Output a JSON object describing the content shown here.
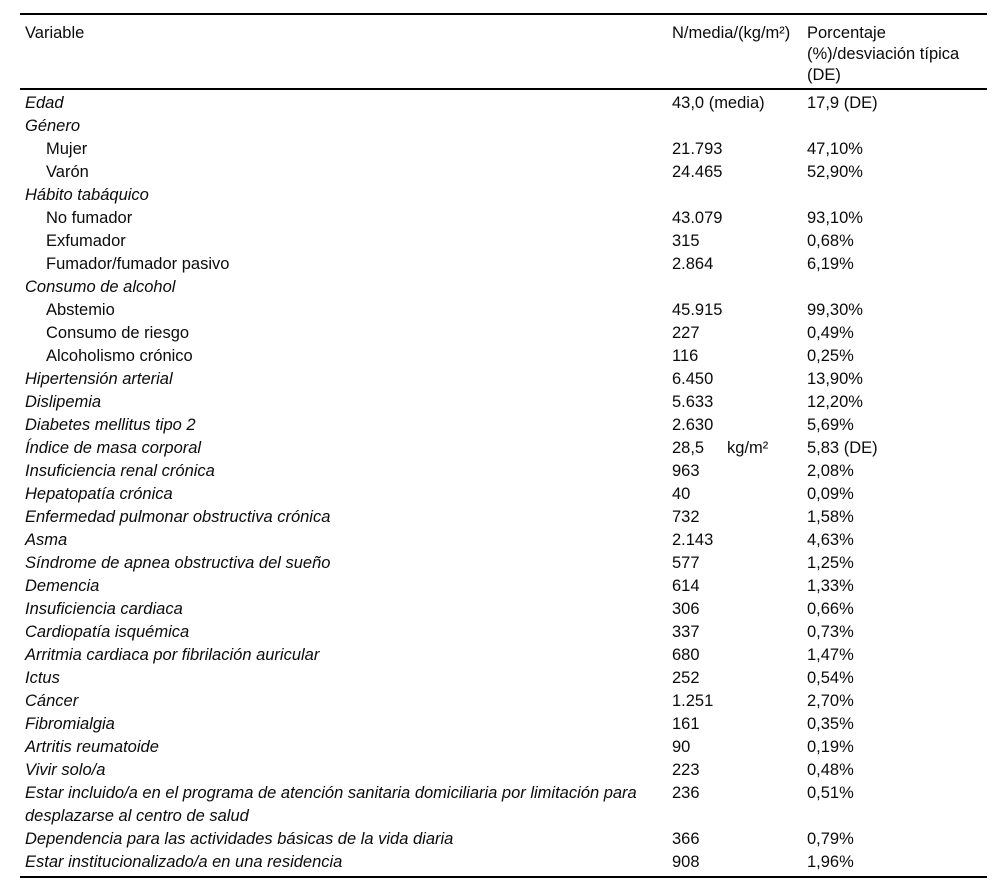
{
  "table": {
    "header": {
      "variable": "Variable",
      "n_media": "N/media/(kg/m²)",
      "porcentaje": "Porcentaje\n(%)/desviación típica\n(DE)"
    },
    "rows": [
      {
        "label": "Edad",
        "kind": "main",
        "n": "43,0 (media)",
        "pct": "17,9 (DE)"
      },
      {
        "label": "Género",
        "kind": "main",
        "n": "",
        "pct": ""
      },
      {
        "label": "Mujer",
        "kind": "sub",
        "n": "21.793",
        "pct": "47,10%"
      },
      {
        "label": "Varón",
        "kind": "sub",
        "n": "24.465",
        "pct": "52,90%"
      },
      {
        "label": "Hábito tabáquico",
        "kind": "main",
        "n": "",
        "pct": ""
      },
      {
        "label": "No fumador",
        "kind": "sub",
        "n": "43.079",
        "pct": "93,10%"
      },
      {
        "label": "Exfumador",
        "kind": "sub",
        "n": "315",
        "pct": "0,68%"
      },
      {
        "label": "Fumador/fumador pasivo",
        "kind": "sub",
        "n": "2.864",
        "pct": "6,19%"
      },
      {
        "label": "Consumo de alcohol",
        "kind": "main",
        "n": "",
        "pct": ""
      },
      {
        "label": "Abstemio",
        "kind": "sub",
        "n": "45.915",
        "pct": "99,30%"
      },
      {
        "label": "Consumo de riesgo",
        "kind": "sub",
        "n": "227",
        "pct": "0,49%"
      },
      {
        "label": "Alcoholismo crónico",
        "kind": "sub",
        "n": "116",
        "pct": "0,25%"
      },
      {
        "label": "Hipertensión arterial",
        "kind": "main",
        "n": "6.450",
        "pct": "13,90%"
      },
      {
        "label": "Dislipemia",
        "kind": "main",
        "n": "5.633",
        "pct": "12,20%"
      },
      {
        "label": "Diabetes mellitus tipo 2",
        "kind": "main",
        "n": "2.630",
        "pct": "5,69%"
      },
      {
        "label": "Índice de masa corporal",
        "kind": "main",
        "n": "28,5     kg/m²",
        "pct": "5,83 (DE)"
      },
      {
        "label": "Insuficiencia renal crónica",
        "kind": "main",
        "n": "963",
        "pct": "2,08%"
      },
      {
        "label": "Hepatopatía crónica",
        "kind": "main",
        "n": "40",
        "pct": "0,09%"
      },
      {
        "label": "Enfermedad pulmonar obstructiva crónica",
        "kind": "main",
        "n": "732",
        "pct": "1,58%"
      },
      {
        "label": "Asma",
        "kind": "main",
        "n": "2.143",
        "pct": "4,63%"
      },
      {
        "label": "Síndrome de apnea obstructiva del sueño",
        "kind": "main",
        "n": "577",
        "pct": "1,25%"
      },
      {
        "label": "Demencia",
        "kind": "main",
        "n": "614",
        "pct": "1,33%"
      },
      {
        "label": "Insuficiencia cardiaca",
        "kind": "main",
        "n": "306",
        "pct": "0,66%"
      },
      {
        "label": "Cardiopatía isquémica",
        "kind": "main",
        "n": "337",
        "pct": "0,73%"
      },
      {
        "label": "Arritmia cardiaca por fibrilación auricular",
        "kind": "main",
        "n": "680",
        "pct": "1,47%"
      },
      {
        "label": "Ictus",
        "kind": "main",
        "n": "252",
        "pct": "0,54%"
      },
      {
        "label": "Cáncer",
        "kind": "main",
        "n": "1.251",
        "pct": "2,70%"
      },
      {
        "label": "Fibromialgia",
        "kind": "main",
        "n": "161",
        "pct": "0,35%"
      },
      {
        "label": "Artritis reumatoide",
        "kind": "main",
        "n": "90",
        "pct": "0,19%"
      },
      {
        "label": "Vivir solo/a",
        "kind": "main",
        "n": "223",
        "pct": "0,48%"
      },
      {
        "label": "Estar incluido/a en el programa de atención sanitaria domiciliaria por limitación para desplazarse al centro de salud",
        "kind": "main",
        "n": "236",
        "pct": "0,51%"
      },
      {
        "label": "Dependencia para las actividades básicas de la vida diaria",
        "kind": "main",
        "n": "366",
        "pct": "0,79%"
      },
      {
        "label": "Estar institucionalizado/a en una residencia",
        "kind": "main",
        "n": "908",
        "pct": "1,96%"
      }
    ]
  }
}
